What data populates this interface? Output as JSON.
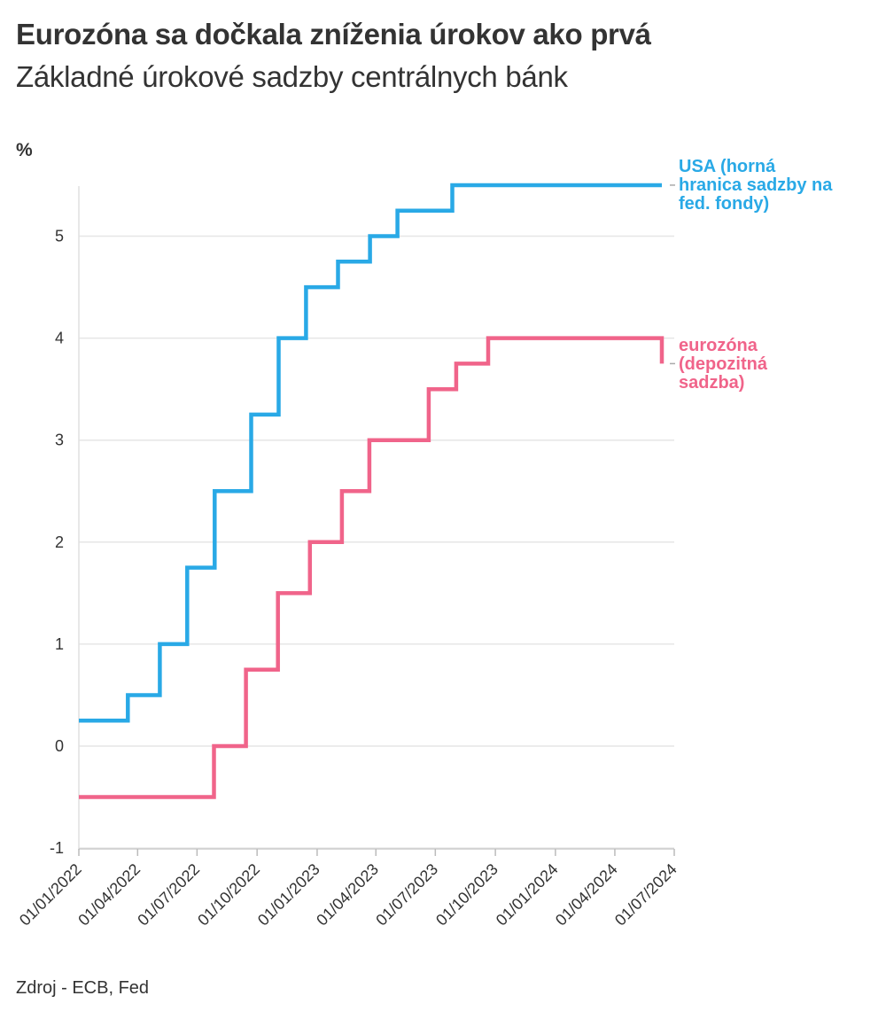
{
  "header": {
    "title": "Eurozóna sa dočkala zníženia úrokov ako prvá",
    "subtitle": "Základné úrokové sadzby centrálnych bánk"
  },
  "unit_label": "%",
  "source": "Zdroj - ECB, Fed",
  "chart_data": {
    "type": "line",
    "step": true,
    "title": "Eurozóna sa dočkala zníženia úrokov ako prvá",
    "subtitle": "Základné úrokové sadzby centrálnych bánk",
    "xlabel": "",
    "ylabel": "%",
    "x_domain": [
      "2022-01-01",
      "2024-07-01"
    ],
    "x_ticks": [
      "2022-01-01",
      "2022-04-01",
      "2022-07-01",
      "2022-10-01",
      "2023-01-01",
      "2023-04-01",
      "2023-07-01",
      "2023-10-01",
      "2024-01-01",
      "2024-04-01",
      "2024-07-01"
    ],
    "x_tick_labels": [
      "01/01/2022",
      "01/04/2022",
      "01/07/2022",
      "01/10/2022",
      "01/01/2023",
      "01/04/2023",
      "01/07/2023",
      "01/10/2023",
      "01/01/2024",
      "01/04/2024",
      "01/07/2024"
    ],
    "ylim": [
      -1,
      5.5
    ],
    "y_ticks": [
      -1,
      0,
      1,
      2,
      3,
      4,
      5
    ],
    "grid": true,
    "series": [
      {
        "name": "USA",
        "label_lines": [
          "USA (horná",
          "hranica sadzby na",
          "fed. fondy)"
        ],
        "color": "#29a9e6",
        "points": [
          {
            "date": "2022-01-01",
            "value": 0.25
          },
          {
            "date": "2022-03-17",
            "value": 0.5
          },
          {
            "date": "2022-05-05",
            "value": 1.0
          },
          {
            "date": "2022-06-16",
            "value": 1.75
          },
          {
            "date": "2022-07-28",
            "value": 2.5
          },
          {
            "date": "2022-09-22",
            "value": 3.25
          },
          {
            "date": "2022-11-03",
            "value": 4.0
          },
          {
            "date": "2022-12-15",
            "value": 4.5
          },
          {
            "date": "2023-02-02",
            "value": 4.75
          },
          {
            "date": "2023-03-23",
            "value": 5.0
          },
          {
            "date": "2023-05-04",
            "value": 5.25
          },
          {
            "date": "2023-07-27",
            "value": 5.5
          },
          {
            "date": "2024-06-12",
            "value": 5.5
          }
        ]
      },
      {
        "name": "eurozóna",
        "label_lines": [
          "eurozóna",
          "(depozitná",
          "sadzba)"
        ],
        "color": "#f0648a",
        "points": [
          {
            "date": "2022-01-01",
            "value": -0.5
          },
          {
            "date": "2022-07-27",
            "value": 0.0
          },
          {
            "date": "2022-09-14",
            "value": 0.75
          },
          {
            "date": "2022-11-02",
            "value": 1.5
          },
          {
            "date": "2022-12-21",
            "value": 2.0
          },
          {
            "date": "2023-02-08",
            "value": 2.5
          },
          {
            "date": "2023-03-22",
            "value": 3.0
          },
          {
            "date": "2023-06-21",
            "value": 3.5
          },
          {
            "date": "2023-08-02",
            "value": 3.75
          },
          {
            "date": "2023-09-20",
            "value": 4.0
          },
          {
            "date": "2024-06-12",
            "value": 3.75
          }
        ]
      }
    ]
  }
}
